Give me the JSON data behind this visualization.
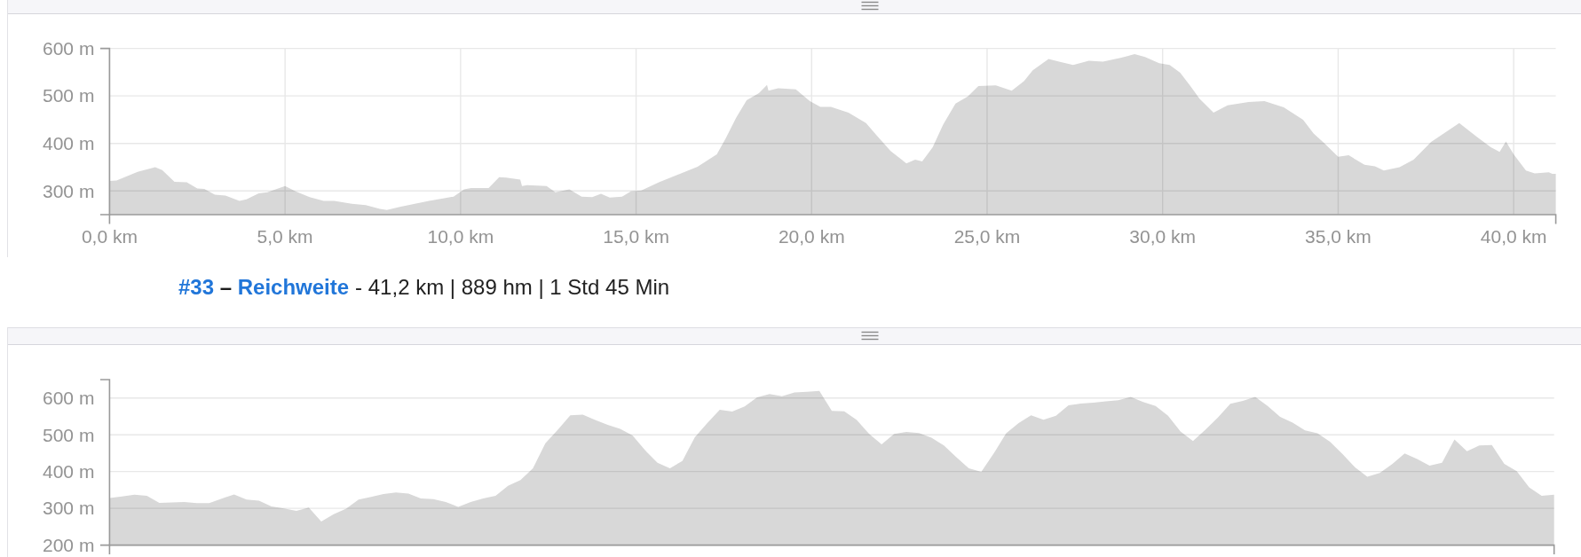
{
  "chart_data": [
    {
      "type": "area",
      "title": "#33 – Reichweite",
      "subtitle": "- 41,2 km | 889 hm | 1 Std 45 Min",
      "x": [
        0,
        0.2,
        0.8,
        1.3,
        1.5,
        1.85,
        2.2,
        2.5,
        2.7,
        3.0,
        3.3,
        3.7,
        3.9,
        4.25,
        4.5,
        5.0,
        5.3,
        5.7,
        6.1,
        6.4,
        6.9,
        7.3,
        7.7,
        7.9,
        8.3,
        8.7,
        9.1,
        9.5,
        9.8,
        10.1,
        10.3,
        10.8,
        11.1,
        11.3,
        11.7,
        11.75,
        11.9,
        12.45,
        12.7,
        13.1,
        13.45,
        13.75,
        14.0,
        14.25,
        14.6,
        14.85,
        15.15,
        15.65,
        16.25,
        16.75,
        17.3,
        17.55,
        17.85,
        18.15,
        18.5,
        18.73,
        18.77,
        19.05,
        19.55,
        19.95,
        20.25,
        20.55,
        21.05,
        21.55,
        21.85,
        22.25,
        22.7,
        22.95,
        23.15,
        23.45,
        23.75,
        24.1,
        24.45,
        24.75,
        25.25,
        25.7,
        26.05,
        26.3,
        26.75,
        27.05,
        27.45,
        27.9,
        28.3,
        28.8,
        29.2,
        29.5,
        29.9,
        30.2,
        30.5,
        30.8,
        31.05,
        31.45,
        31.85,
        32.45,
        32.9,
        33.45,
        34.0,
        34.3,
        34.6,
        35.0,
        35.3,
        35.75,
        36.05,
        36.3,
        36.75,
        37.15,
        37.65,
        38.45,
        38.95,
        39.35,
        39.6,
        39.78,
        40.0,
        40.35,
        40.6,
        41.0,
        41.1,
        41.2
      ],
      "series": [
        {
          "color": "#d8d8d8",
          "values": [
            321,
            322,
            340,
            350,
            344,
            319,
            318,
            305,
            304,
            292,
            290,
            279,
            282,
            295,
            297,
            310,
            299,
            287,
            279,
            279,
            273,
            270,
            262,
            260,
            267,
            273,
            279,
            284,
            288,
            303,
            306,
            306,
            329,
            328,
            324,
            310,
            312,
            310,
            297,
            303,
            288,
            287,
            294,
            286,
            288,
            299,
            301,
            318,
            336,
            351,
            377,
            410,
            454,
            491,
            506,
            523,
            511,
            516,
            514,
            489,
            477,
            477,
            465,
            443,
            417,
            384,
            358,
            366,
            362,
            392,
            440,
            484,
            499,
            521,
            522,
            511,
            531,
            554,
            578,
            572,
            565,
            574,
            572,
            580,
            588,
            582,
            569,
            565,
            549,
            520,
            494,
            465,
            480,
            487,
            489,
            476,
            450,
            421,
            401,
            372,
            375,
            355,
            352,
            343,
            350,
            366,
            403,
            443,
            414,
            392,
            382,
            404,
            377,
            343,
            337,
            339,
            336,
            336
          ]
        }
      ],
      "xlim": [
        0,
        41.2
      ],
      "xticks": [
        {
          "value": 0,
          "label": "0,0 km"
        },
        {
          "value": 5,
          "label": "5,0 km"
        },
        {
          "value": 10,
          "label": "10,0 km"
        },
        {
          "value": 15,
          "label": "15,0 km"
        },
        {
          "value": 20,
          "label": "20,0 km"
        },
        {
          "value": 25,
          "label": "25,0 km"
        },
        {
          "value": 30,
          "label": "30,0 km"
        },
        {
          "value": 35,
          "label": "35,0 km"
        },
        {
          "value": 40,
          "label": "40,0 km"
        }
      ],
      "ylim": [
        250,
        600
      ],
      "yticks": [
        {
          "value": 300,
          "label": "300 m"
        },
        {
          "value": 400,
          "label": "400 m"
        },
        {
          "value": 500,
          "label": "500 m"
        },
        {
          "value": 600,
          "label": "600 m"
        }
      ],
      "grid": true
    },
    {
      "type": "area",
      "categories": [
        null,
        null,
        null,
        null,
        null,
        null,
        null,
        null,
        null,
        null,
        null,
        null,
        null,
        null,
        null,
        null,
        null,
        null,
        null,
        null,
        null,
        null,
        null,
        null,
        null,
        null,
        null,
        null,
        null,
        null,
        null,
        null,
        null,
        null,
        null,
        null,
        null,
        null,
        null,
        null,
        null,
        null,
        null,
        null,
        null,
        null,
        null,
        null,
        null,
        null,
        null,
        null,
        null,
        null,
        null,
        null,
        null,
        null,
        null,
        null,
        null,
        null,
        null,
        null,
        null,
        null,
        null,
        null,
        null,
        null,
        null,
        null,
        null,
        null,
        null,
        null,
        null,
        null,
        null,
        null,
        null,
        null,
        null,
        null,
        null,
        null,
        null,
        null,
        null,
        null,
        null,
        null,
        null,
        null,
        null,
        null,
        null,
        null,
        null,
        null,
        null,
        null,
        null,
        null,
        null,
        null,
        null,
        null,
        null,
        null,
        null,
        null,
        null,
        null,
        null,
        null,
        null
      ],
      "series": [
        {
          "color": "#d8d8d8",
          "values": [
            328,
            332,
            337,
            334,
            315,
            316,
            317,
            314,
            314,
            326,
            338,
            324,
            321,
            305,
            300,
            293,
            302,
            264,
            284,
            299,
            324,
            331,
            339,
            343,
            340,
            327,
            325,
            317,
            304,
            317,
            327,
            334,
            361,
            377,
            409,
            477,
            514,
            553,
            555,
            540,
            527,
            516,
            498,
            458,
            424,
            409,
            429,
            493,
            532,
            568,
            563,
            577,
            602,
            611,
            605,
            615,
            617,
            619,
            565,
            564,
            540,
            502,
            474,
            502,
            508,
            505,
            492,
            471,
            439,
            409,
            399,
            449,
            504,
            532,
            553,
            541,
            552,
            580,
            585,
            587,
            591,
            594,
            603,
            589,
            578,
            552,
            509,
            483,
            514,
            547,
            584,
            592,
            603,
            578,
            549,
            533,
            512,
            504,
            481,
            448,
            412,
            386,
            396,
            420,
            449,
            434,
            416,
            424,
            487,
            455,
            471,
            472,
            421,
            401,
            357,
            334,
            337
          ]
        }
      ],
      "ylim": [
        200,
        650
      ],
      "yticks": [
        {
          "value": 200,
          "label": "200 m"
        },
        {
          "value": 300,
          "label": "300 m"
        },
        {
          "value": 400,
          "label": "400 m"
        },
        {
          "value": 500,
          "label": "500 m"
        },
        {
          "value": 600,
          "label": "600 m"
        }
      ],
      "grid": "y",
      "tick_labels": "y"
    }
  ]
}
